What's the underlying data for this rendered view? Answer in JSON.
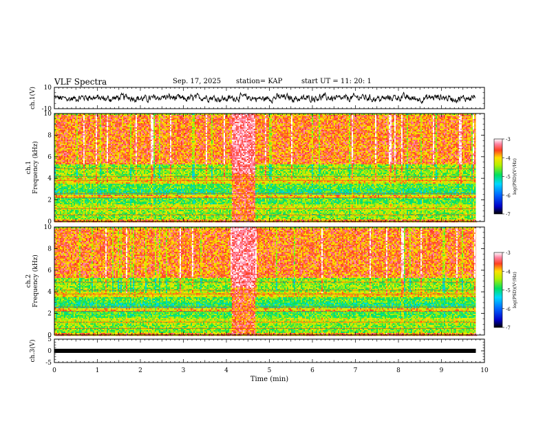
{
  "header": {
    "title": "VLF Spectra",
    "date": "Sep. 17, 2025",
    "station": "station= KAP",
    "start": "start  UT =   11: 20: 1"
  },
  "chart_data": [
    {
      "type": "line",
      "panel": "ch1-waveform",
      "ylabel": "ch.1(V)",
      "ylim": [
        -10,
        10
      ],
      "yticks": [
        "10",
        "-10"
      ],
      "xlim": [
        0,
        10
      ],
      "description_values": {
        "mean": 0,
        "amplitude": 3
      }
    },
    {
      "type": "heatmap",
      "panel": "ch1-spectrogram",
      "ylabel_top": "ch.1",
      "ylabel": "Frequency  (kHz)",
      "ylim": [
        0,
        10
      ],
      "yticks": [
        "0",
        "2",
        "4",
        "6",
        "8",
        "10"
      ],
      "xlim": [
        0,
        10
      ],
      "data_end_min": 9.8,
      "noise_burst_min": [
        4.1,
        4.65
      ],
      "colorbar": {
        "label": "log(PSD)(V²/Hz)",
        "range": [
          -7,
          -3
        ],
        "ticks": [
          "-3",
          "-4",
          "-5",
          "-6",
          "-7"
        ]
      }
    },
    {
      "type": "heatmap",
      "panel": "ch2-spectrogram",
      "ylabel_top": "ch.2",
      "ylabel": "Frequency  (kHz)",
      "ylim": [
        0,
        10
      ],
      "yticks": [
        "0",
        "2",
        "4",
        "6",
        "8",
        "10"
      ],
      "xlim": [
        0,
        10
      ],
      "data_end_min": 9.8,
      "noise_burst_min": [
        4.1,
        4.65
      ],
      "colorbar": {
        "label": "log(PSD)(V²/Hz)",
        "range": [
          -7,
          -3
        ],
        "ticks": [
          "-3",
          "-4",
          "-5",
          "-6",
          "-7"
        ]
      }
    },
    {
      "type": "line",
      "panel": "ch3-waveform",
      "ylabel": "ch.3(V)",
      "ylim": [
        -5,
        5
      ],
      "yticks": [
        "5",
        "0",
        "-5"
      ],
      "xlim": [
        0,
        10
      ],
      "xticks": [
        "0",
        "1",
        "2",
        "3",
        "4",
        "5",
        "6",
        "7",
        "8",
        "9",
        "10"
      ],
      "xlabel": "Time  (min)",
      "description_values": {
        "mean": 0
      }
    }
  ]
}
